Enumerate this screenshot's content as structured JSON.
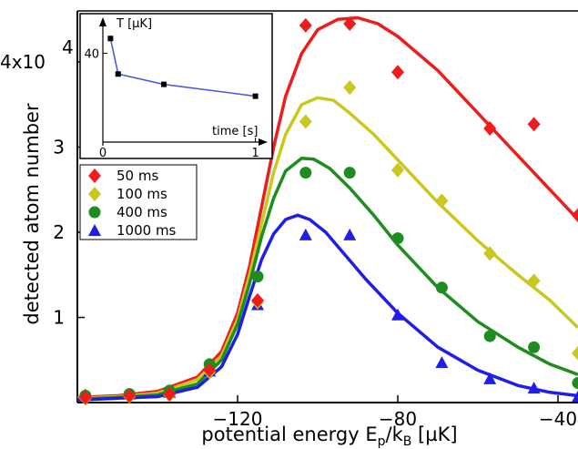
{
  "chart_data": [
    {
      "type": "scatter",
      "xlabel": "potential energy E",
      "xlabel_sub": "p",
      "xlabel_mid": "/k",
      "xlabel_sub2": "B",
      "xlabel_unit": " [µK]",
      "ylabel": "detected atom number",
      "xlim": [
        -160,
        -35
      ],
      "ylim": [
        0,
        4.6
      ],
      "x_ticks": [
        -120,
        -80,
        -40
      ],
      "y_ticks": [
        {
          "value": 1,
          "label": "1"
        },
        {
          "value": 2,
          "label": "2"
        },
        {
          "value": 3,
          "label": "3"
        },
        {
          "value": 4,
          "label": "4x10"
        }
      ],
      "y_exponent": "4",
      "grid": false,
      "legend_position": "upper-left",
      "series": [
        {
          "name": "50 ms",
          "marker": "diamond",
          "color": "#ee1c1c",
          "points": [
            [
              -158,
              0.06
            ],
            [
              -147,
              0.08
            ],
            [
              -137,
              0.1
            ],
            [
              -127,
              0.38
            ],
            [
              -115,
              1.2
            ],
            [
              -103,
              4.43
            ],
            [
              -92,
              4.45
            ],
            [
              -80,
              3.88
            ],
            [
              -57,
              3.22
            ],
            [
              -46,
              3.27
            ],
            [
              -35,
              2.2
            ]
          ],
          "fit": [
            [
              -160,
              0.06
            ],
            [
              -150,
              0.08
            ],
            [
              -140,
              0.13
            ],
            [
              -130,
              0.3
            ],
            [
              -124,
              0.6
            ],
            [
              -120,
              1.05
            ],
            [
              -117,
              1.6
            ],
            [
              -114,
              2.3
            ],
            [
              -111,
              3.0
            ],
            [
              -108,
              3.6
            ],
            [
              -104,
              4.1
            ],
            [
              -100,
              4.38
            ],
            [
              -95,
              4.5
            ],
            [
              -90,
              4.52
            ],
            [
              -85,
              4.45
            ],
            [
              -80,
              4.3
            ],
            [
              -70,
              3.9
            ],
            [
              -60,
              3.4
            ],
            [
              -50,
              2.9
            ],
            [
              -42,
              2.5
            ],
            [
              -35,
              2.15
            ]
          ]
        },
        {
          "name": "100 ms",
          "marker": "diamond",
          "color": "#c8c81e",
          "points": [
            [
              -158,
              0.05
            ],
            [
              -147,
              0.07
            ],
            [
              -137,
              0.09
            ],
            [
              -127,
              0.36
            ],
            [
              -115,
              1.18
            ],
            [
              -103,
              3.3
            ],
            [
              -92,
              3.7
            ],
            [
              -80,
              2.73
            ],
            [
              -69,
              2.37
            ],
            [
              -57,
              1.75
            ],
            [
              -46,
              1.43
            ],
            [
              -35,
              0.58
            ]
          ],
          "fit": [
            [
              -160,
              0.05
            ],
            [
              -150,
              0.07
            ],
            [
              -140,
              0.11
            ],
            [
              -130,
              0.27
            ],
            [
              -124,
              0.55
            ],
            [
              -120,
              0.98
            ],
            [
              -117,
              1.5
            ],
            [
              -114,
              2.1
            ],
            [
              -111,
              2.7
            ],
            [
              -108,
              3.15
            ],
            [
              -104,
              3.5
            ],
            [
              -100,
              3.58
            ],
            [
              -96,
              3.55
            ],
            [
              -92,
              3.4
            ],
            [
              -86,
              3.15
            ],
            [
              -80,
              2.85
            ],
            [
              -70,
              2.35
            ],
            [
              -60,
              1.9
            ],
            [
              -50,
              1.5
            ],
            [
              -42,
              1.2
            ],
            [
              -35,
              0.88
            ]
          ]
        },
        {
          "name": "400 ms",
          "marker": "circle",
          "color": "#1e8c1e",
          "points": [
            [
              -158,
              0.08
            ],
            [
              -147,
              0.1
            ],
            [
              -137,
              0.14
            ],
            [
              -127,
              0.45
            ],
            [
              -115,
              1.48
            ],
            [
              -103,
              2.7
            ],
            [
              -92,
              2.7
            ],
            [
              -80,
              1.93
            ],
            [
              -69,
              1.35
            ],
            [
              -57,
              0.78
            ],
            [
              -46,
              0.65
            ],
            [
              -35,
              0.23
            ]
          ],
          "fit": [
            [
              -160,
              0.04
            ],
            [
              -150,
              0.06
            ],
            [
              -140,
              0.09
            ],
            [
              -130,
              0.22
            ],
            [
              -124,
              0.5
            ],
            [
              -120,
              0.92
            ],
            [
              -117,
              1.4
            ],
            [
              -114,
              1.95
            ],
            [
              -111,
              2.4
            ],
            [
              -108,
              2.72
            ],
            [
              -104,
              2.87
            ],
            [
              -101,
              2.86
            ],
            [
              -97,
              2.75
            ],
            [
              -92,
              2.52
            ],
            [
              -86,
              2.2
            ],
            [
              -80,
              1.85
            ],
            [
              -70,
              1.35
            ],
            [
              -60,
              0.95
            ],
            [
              -50,
              0.65
            ],
            [
              -42,
              0.45
            ],
            [
              -35,
              0.33
            ]
          ]
        },
        {
          "name": "1000 ms",
          "marker": "triangle",
          "color": "#1e1ee6",
          "points": [
            [
              -158,
              0.09
            ],
            [
              -147,
              0.1
            ],
            [
              -137,
              0.12
            ],
            [
              -127,
              0.37
            ],
            [
              -115,
              1.15
            ],
            [
              -103,
              1.97
            ],
            [
              -92,
              1.97
            ],
            [
              -80,
              1.03
            ],
            [
              -69,
              0.47
            ],
            [
              -57,
              0.28
            ],
            [
              -46,
              0.17
            ],
            [
              -35,
              0.07
            ]
          ],
          "fit": [
            [
              -160,
              0.03
            ],
            [
              -150,
              0.05
            ],
            [
              -140,
              0.07
            ],
            [
              -130,
              0.18
            ],
            [
              -124,
              0.42
            ],
            [
              -120,
              0.8
            ],
            [
              -117,
              1.25
            ],
            [
              -114,
              1.68
            ],
            [
              -111,
              1.98
            ],
            [
              -108,
              2.15
            ],
            [
              -105,
              2.2
            ],
            [
              -102,
              2.15
            ],
            [
              -98,
              2.0
            ],
            [
              -94,
              1.78
            ],
            [
              -88,
              1.45
            ],
            [
              -80,
              1.05
            ],
            [
              -70,
              0.65
            ],
            [
              -60,
              0.38
            ],
            [
              -50,
              0.2
            ],
            [
              -42,
              0.12
            ],
            [
              -35,
              0.08
            ]
          ]
        }
      ]
    },
    {
      "type": "line",
      "ylabel": "T [µK]",
      "xlabel": "time [s]",
      "x_ticks": [
        {
          "value": 0,
          "label": "0"
        },
        {
          "value": 1,
          "label": "1"
        }
      ],
      "y_ticks": [
        {
          "value": 40,
          "label": "40"
        }
      ],
      "xlim": [
        0,
        1.05
      ],
      "ylim": [
        28,
        44
      ],
      "color": "#4455dd",
      "points": [
        [
          0.05,
          42.0
        ],
        [
          0.1,
          37.2
        ],
        [
          0.4,
          35.8
        ],
        [
          1.0,
          34.2
        ]
      ]
    }
  ]
}
